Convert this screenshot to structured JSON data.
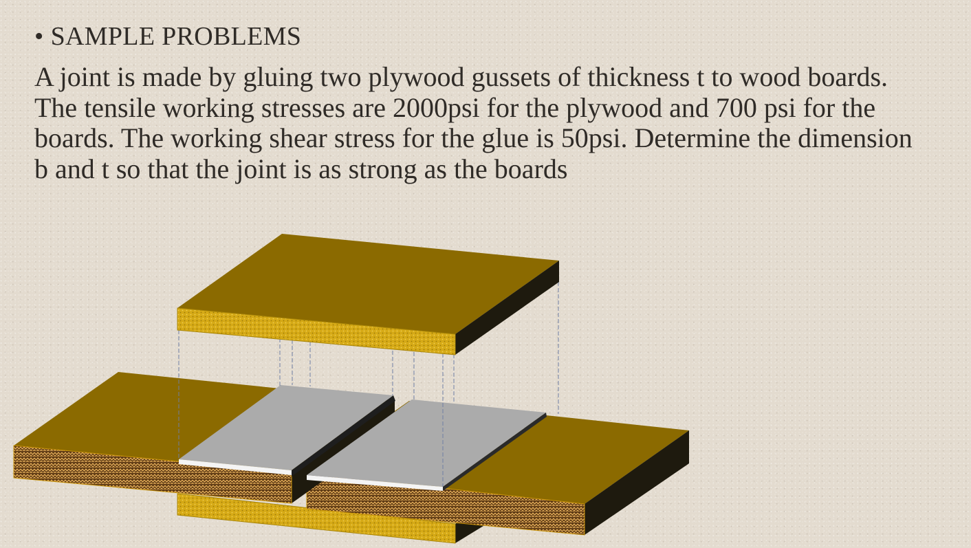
{
  "slide": {
    "heading": {
      "bullet": "•",
      "text": "SAMPLE PROBLEMS"
    },
    "problem_text": "A joint is made by gluing two plywood gussets of thickness t to wood boards. The tensile working stresses are 2000psi for the plywood and 700 psi for the boards. The working shear stress for the glue is 50psi. Determine the dimension b and t so that the joint is as strong as the boards"
  },
  "colors": {
    "board_top": "#8b6a00",
    "board_side": "#1e1a0e",
    "gusset_front": "#d4a814",
    "glue_top": "#ababab",
    "glue_edge": "#f4f4f4",
    "guide_line": "#6f7fa4"
  }
}
